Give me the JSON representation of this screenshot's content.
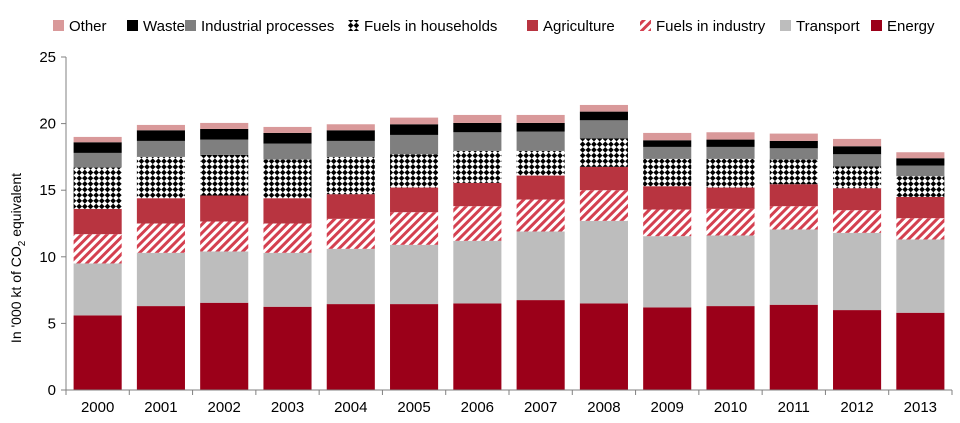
{
  "chart_data": {
    "type": "bar",
    "stacked": true,
    "categories": [
      "2000",
      "2001",
      "2002",
      "2003",
      "2004",
      "2005",
      "2006",
      "2007",
      "2008",
      "2009",
      "2010",
      "2011",
      "2012",
      "2013"
    ],
    "ylabel_parts": [
      "In '000 kt of CO",
      "2",
      " equivalent"
    ],
    "ylim": [
      0,
      25
    ],
    "yticks": [
      "0",
      "5",
      "10",
      "15",
      "20",
      "25"
    ],
    "grid": false,
    "legend_position": "top",
    "series": [
      {
        "key": "energy",
        "name": "Energy",
        "color": "#9b0019",
        "pattern": "solid",
        "values": [
          5.6,
          6.3,
          6.55,
          6.25,
          6.45,
          6.45,
          6.5,
          6.75,
          6.5,
          6.2,
          6.3,
          6.4,
          6.0,
          5.8
        ]
      },
      {
        "key": "transport",
        "name": "Transport",
        "color": "#bdbdbd",
        "pattern": "solid",
        "values": [
          3.9,
          4.0,
          3.85,
          4.05,
          4.15,
          4.45,
          4.7,
          5.15,
          6.2,
          5.35,
          5.3,
          5.65,
          5.8,
          5.5
        ]
      },
      {
        "key": "fuels_industry",
        "name": "Fuels in industry",
        "color": "#d44050",
        "pattern": "diagonal-red",
        "values": [
          2.2,
          2.2,
          2.25,
          2.2,
          2.25,
          2.45,
          2.6,
          2.4,
          2.3,
          2.0,
          2.0,
          1.75,
          1.7,
          1.6
        ]
      },
      {
        "key": "agriculture",
        "name": "Agriculture",
        "color": "#b83440",
        "pattern": "solid",
        "values": [
          1.9,
          1.9,
          1.95,
          1.9,
          1.85,
          1.85,
          1.75,
          1.8,
          1.75,
          1.75,
          1.6,
          1.65,
          1.65,
          1.6
        ]
      },
      {
        "key": "fuels_households",
        "name": "Fuels in households",
        "color": "#000000",
        "pattern": "checker",
        "values": [
          3.1,
          3.1,
          3.05,
          2.9,
          2.8,
          2.5,
          2.4,
          1.85,
          2.15,
          2.05,
          2.15,
          1.85,
          1.65,
          1.55
        ]
      },
      {
        "key": "industrial_processes",
        "name": "Industrial processes",
        "color": "#7f7f7f",
        "pattern": "solid",
        "values": [
          1.1,
          1.2,
          1.15,
          1.2,
          1.2,
          1.45,
          1.4,
          1.45,
          1.35,
          0.9,
          0.9,
          0.85,
          0.9,
          0.8
        ]
      },
      {
        "key": "waste",
        "name": "Waste",
        "color": "#000000",
        "pattern": "solid",
        "values": [
          0.8,
          0.8,
          0.8,
          0.8,
          0.8,
          0.8,
          0.7,
          0.65,
          0.65,
          0.5,
          0.55,
          0.55,
          0.6,
          0.55
        ]
      },
      {
        "key": "other",
        "name": "Other",
        "color": "#d9999a",
        "pattern": "solid",
        "values": [
          0.4,
          0.4,
          0.45,
          0.45,
          0.45,
          0.5,
          0.6,
          0.6,
          0.5,
          0.55,
          0.55,
          0.55,
          0.55,
          0.45
        ]
      }
    ],
    "legend_order": [
      "other",
      "waste",
      "industrial_processes",
      "fuels_households",
      "agriculture",
      "fuels_industry",
      "transport",
      "energy"
    ]
  }
}
